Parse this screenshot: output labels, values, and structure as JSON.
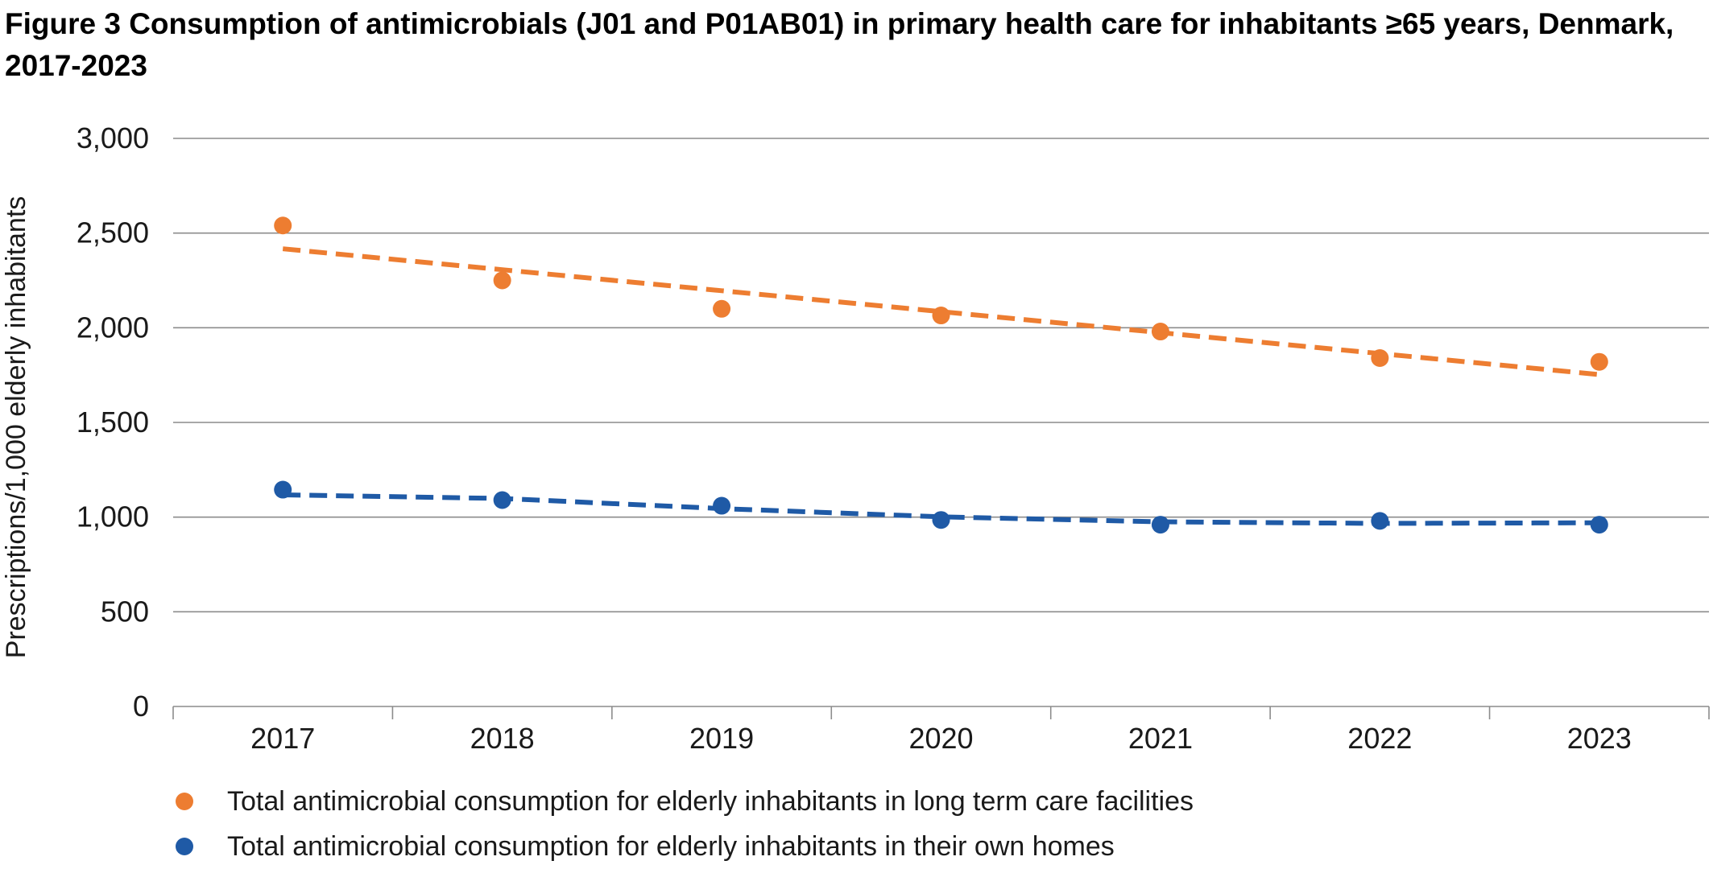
{
  "title": "Figure 3 Consumption of antimicrobials (J01 and P01AB01) in primary health care for inhabitants ≥65 years, Denmark, 2017-2023",
  "colors": {
    "series_long_term_care": "#ed7d31",
    "series_own_homes": "#1f5aa6",
    "gridline": "#8c8c8c"
  },
  "chart_data": {
    "type": "scatter",
    "x": [
      "2017",
      "2018",
      "2019",
      "2020",
      "2021",
      "2022",
      "2023"
    ],
    "xlabel": "",
    "ylabel": "Prescriptions/1,000 elderly inhabitants",
    "ylim": [
      0,
      3000
    ],
    "yticks": [
      0,
      500,
      1000,
      1500,
      2000,
      2500,
      3000
    ],
    "ytick_labels": [
      "0",
      "500",
      "1,000",
      "1,500",
      "2,000",
      "2,500",
      "3,000"
    ],
    "grid": "horizontal",
    "legend_position": "bottom",
    "series": [
      {
        "name": "Total antimicrobial consumption for elderly inhabitants in long term care facilities",
        "color": "#ed7d31",
        "values": [
          2540,
          2250,
          2100,
          2065,
          1980,
          1840,
          1820
        ],
        "trendline": "linear"
      },
      {
        "name": "Total antimicrobial consumption for elderly inhabitants in their own homes",
        "color": "#1f5aa6",
        "values": [
          1145,
          1090,
          1060,
          985,
          960,
          980,
          960
        ],
        "trendline": "moving-average"
      }
    ]
  }
}
